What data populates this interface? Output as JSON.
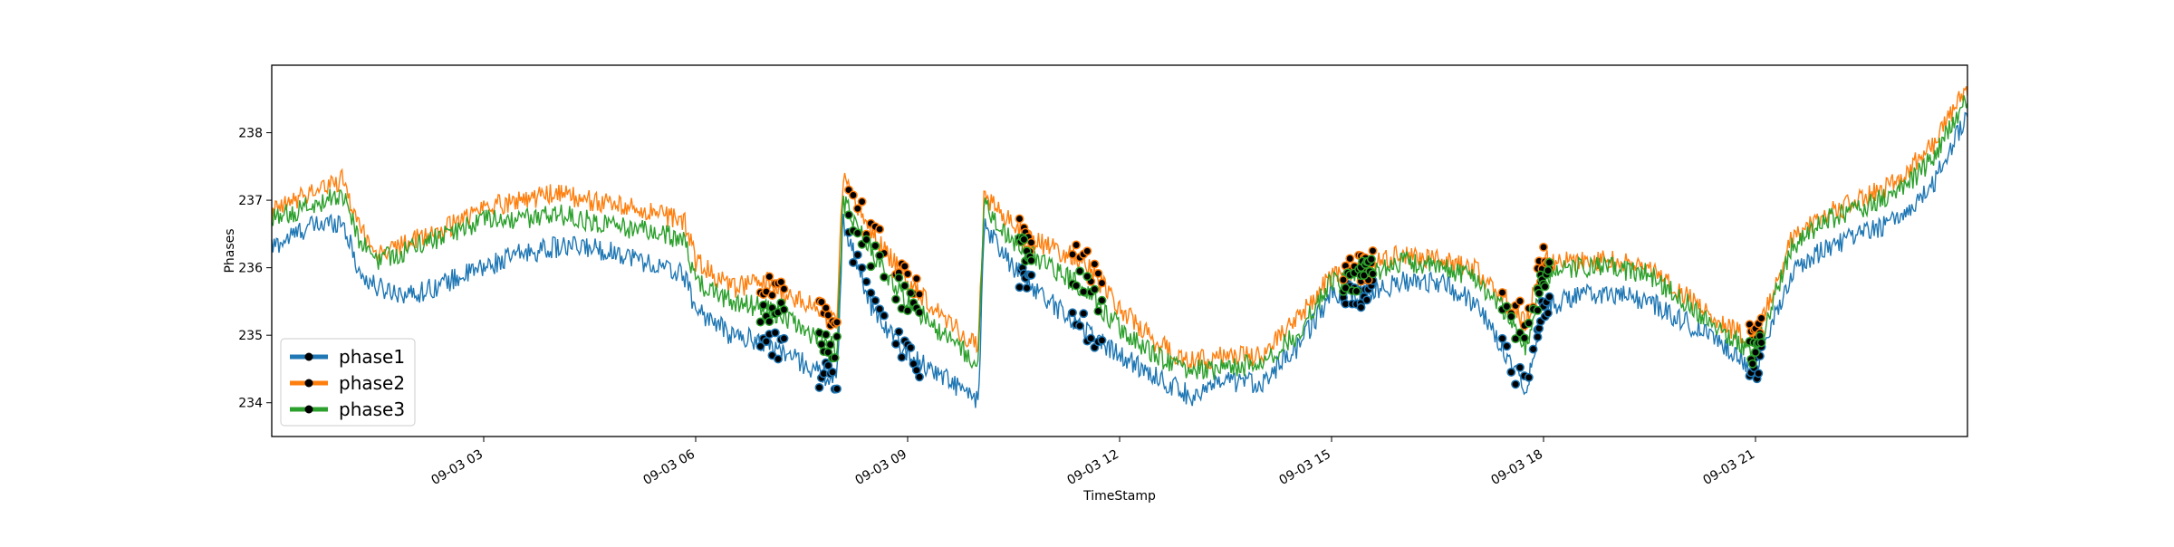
{
  "chart_data": {
    "type": "line",
    "xlabel": "TimeStamp",
    "ylabel": "Phases",
    "xlim": [
      "2023-09-03 00:00",
      "2023-09-04 00:00"
    ],
    "ylim": [
      233.5,
      239.0
    ],
    "y_ticks": [
      234,
      235,
      236,
      237,
      238
    ],
    "x_ticks": [
      {
        "t": "2023-09-03 03:00",
        "label": "09-03 03"
      },
      {
        "t": "2023-09-03 06:00",
        "label": "09-03 06"
      },
      {
        "t": "2023-09-03 09:00",
        "label": "09-03 09"
      },
      {
        "t": "2023-09-03 12:00",
        "label": "09-03 12"
      },
      {
        "t": "2023-09-03 15:00",
        "label": "09-03 15"
      },
      {
        "t": "2023-09-03 18:00",
        "label": "09-03 18"
      },
      {
        "t": "2023-09-03 21:00",
        "label": "09-03 21"
      }
    ],
    "grid": false,
    "legend_position": "lower-left",
    "x": [
      "2023-09-03 00:00",
      "2023-09-03 00:30",
      "2023-09-03 01:00",
      "2023-09-03 01:15",
      "2023-09-03 01:30",
      "2023-09-03 02:00",
      "2023-09-03 02:30",
      "2023-09-03 03:00",
      "2023-09-03 03:30",
      "2023-09-03 04:00",
      "2023-09-03 04:30",
      "2023-09-03 05:00",
      "2023-09-03 05:30",
      "2023-09-03 05:50",
      "2023-09-03 06:00",
      "2023-09-03 06:30",
      "2023-09-03 07:00",
      "2023-09-03 07:30",
      "2023-09-03 08:00",
      "2023-09-03 08:05",
      "2023-09-03 08:30",
      "2023-09-03 09:00",
      "2023-09-03 09:30",
      "2023-09-03 10:00",
      "2023-09-03 10:05",
      "2023-09-03 10:30",
      "2023-09-03 11:00",
      "2023-09-03 11:30",
      "2023-09-03 12:00",
      "2023-09-03 12:30",
      "2023-09-03 13:00",
      "2023-09-03 13:30",
      "2023-09-03 14:00",
      "2023-09-03 14:30",
      "2023-09-03 15:00",
      "2023-09-03 15:30",
      "2023-09-03 16:00",
      "2023-09-03 16:30",
      "2023-09-03 17:00",
      "2023-09-03 17:30",
      "2023-09-03 17:45",
      "2023-09-03 18:00",
      "2023-09-03 18:30",
      "2023-09-03 19:00",
      "2023-09-03 19:30",
      "2023-09-03 20:00",
      "2023-09-03 20:30",
      "2023-09-03 21:00",
      "2023-09-03 21:30",
      "2023-09-03 22:00",
      "2023-09-03 22:30",
      "2023-09-03 23:00",
      "2023-09-03 23:30",
      "2023-09-04 00:00"
    ],
    "series": [
      {
        "name": "phase1",
        "color": "#1f77b4",
        "values": [
          236.3,
          236.6,
          236.7,
          235.9,
          235.7,
          235.6,
          235.8,
          236.0,
          236.2,
          236.3,
          236.3,
          236.2,
          236.0,
          235.9,
          235.4,
          235.0,
          234.9,
          234.6,
          234.3,
          236.7,
          235.4,
          234.7,
          234.4,
          234.0,
          236.6,
          236.0,
          235.5,
          235.1,
          234.7,
          234.4,
          234.1,
          234.3,
          234.3,
          234.8,
          235.6,
          235.6,
          235.8,
          235.8,
          235.5,
          234.7,
          234.2,
          235.4,
          235.6,
          235.6,
          235.5,
          235.2,
          234.9,
          234.5,
          235.9,
          236.3,
          236.5,
          236.7,
          237.2,
          238.3
        ]
      },
      {
        "name": "phase2",
        "color": "#ff7f0e",
        "values": [
          236.8,
          237.1,
          237.3,
          236.6,
          236.2,
          236.4,
          236.6,
          236.9,
          237.0,
          237.1,
          237.0,
          236.9,
          236.8,
          236.7,
          236.1,
          235.7,
          235.8,
          235.5,
          235.2,
          237.3,
          236.5,
          235.8,
          235.3,
          234.8,
          237.1,
          236.6,
          236.3,
          236.1,
          235.4,
          234.9,
          234.6,
          234.7,
          234.7,
          235.2,
          235.9,
          236.0,
          236.2,
          236.1,
          236.0,
          235.5,
          235.2,
          236.1,
          236.1,
          236.1,
          236.0,
          235.6,
          235.2,
          234.9,
          236.4,
          236.8,
          237.0,
          237.3,
          237.8,
          238.7
        ]
      },
      {
        "name": "phase3",
        "color": "#2ca02c",
        "values": [
          236.7,
          236.9,
          237.1,
          236.4,
          236.1,
          236.3,
          236.5,
          236.7,
          236.7,
          236.8,
          236.7,
          236.6,
          236.5,
          236.4,
          235.8,
          235.5,
          235.4,
          235.1,
          234.8,
          237.0,
          236.2,
          235.5,
          235.0,
          234.6,
          236.9,
          236.4,
          236.0,
          235.7,
          235.1,
          234.7,
          234.5,
          234.5,
          234.6,
          235.0,
          235.8,
          235.9,
          236.1,
          236.0,
          235.9,
          235.3,
          234.8,
          235.9,
          236.0,
          236.0,
          235.9,
          235.5,
          235.1,
          234.7,
          236.3,
          236.7,
          236.9,
          237.1,
          237.6,
          238.5
        ]
      }
    ],
    "anomalies": {
      "marker_color": "#000000",
      "clusters": [
        {
          "from": "2023-09-03 06:55",
          "to": "2023-09-03 07:15"
        },
        {
          "from": "2023-09-03 07:45",
          "to": "2023-09-03 08:00"
        },
        {
          "from": "2023-09-03 08:10",
          "to": "2023-09-03 08:40"
        },
        {
          "from": "2023-09-03 08:50",
          "to": "2023-09-03 09:10"
        },
        {
          "from": "2023-09-03 10:35",
          "to": "2023-09-03 10:45"
        },
        {
          "from": "2023-09-03 11:20",
          "to": "2023-09-03 11:45"
        },
        {
          "from": "2023-09-03 15:10",
          "to": "2023-09-03 15:25"
        },
        {
          "from": "2023-09-03 15:25",
          "to": "2023-09-03 15:35"
        },
        {
          "from": "2023-09-03 17:25",
          "to": "2023-09-03 17:55"
        },
        {
          "from": "2023-09-03 17:55",
          "to": "2023-09-03 18:05"
        },
        {
          "from": "2023-09-03 20:55",
          "to": "2023-09-03 21:05"
        }
      ]
    }
  }
}
